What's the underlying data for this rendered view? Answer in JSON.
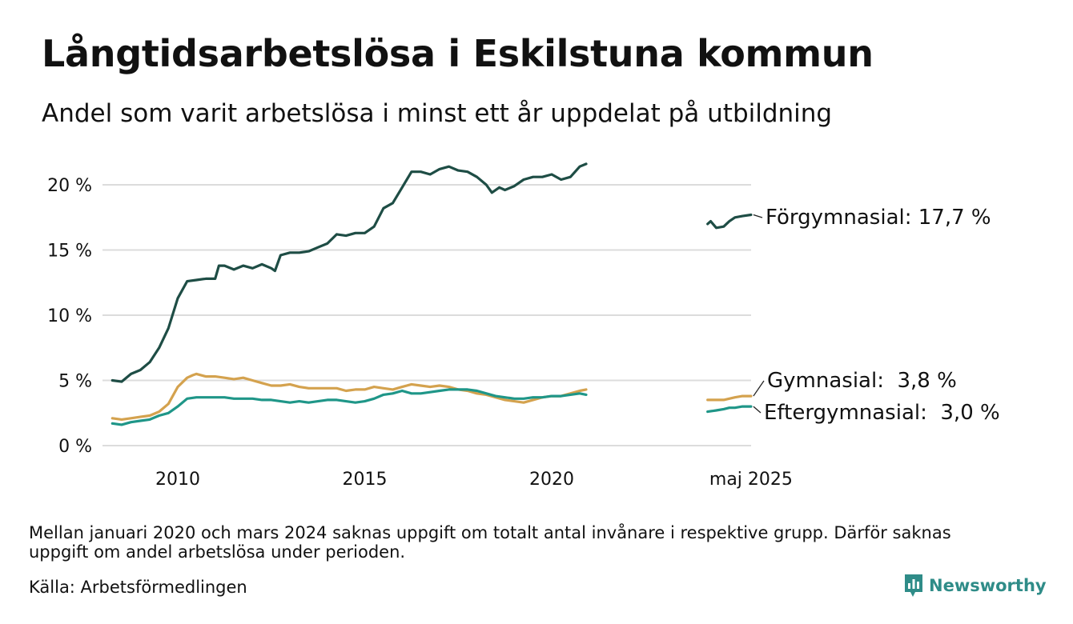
{
  "header": {
    "title": "Långtidsarbetslösa i Eskilstuna kommun",
    "subtitle": "Andel som varit arbetslösa i minst ett år uppdelat på utbildning"
  },
  "footer": {
    "note": "Mellan januari 2020 och mars 2024 saknas uppgift om totalt antal invånare i respektive grupp. Därför saknas uppgift om andel arbetslösa under perioden.",
    "source": "Källa: Arbetsförmedlingen",
    "brand": "Newsworthy",
    "brand_color": "#2f8c88"
  },
  "chart_data": {
    "type": "line",
    "title": "Långtidsarbetslösa i Eskilstuna kommun",
    "subtitle": "Andel som varit arbetslösa i minst ett år uppdelat på utbildning",
    "xlabel": "",
    "ylabel": "",
    "x_ticks": [
      {
        "x": 2010,
        "label": "2010"
      },
      {
        "x": 2015,
        "label": "2015"
      },
      {
        "x": 2020,
        "label": "2020"
      },
      {
        "x": 2025.33,
        "label": "maj 2025"
      }
    ],
    "y_ticks": [
      {
        "y": 0,
        "label": "0 %"
      },
      {
        "y": 5,
        "label": "5 %"
      },
      {
        "y": 10,
        "label": "10 %"
      },
      {
        "y": 15,
        "label": "15 %"
      },
      {
        "y": 20,
        "label": "20 %"
      }
    ],
    "xlim": [
      2008.0,
      2025.6
    ],
    "ylim": [
      0,
      22
    ],
    "grid": true,
    "legend": "direct labels at right end of lines",
    "series": [
      {
        "name": "Förgymnasial",
        "end_label": "Förgymnasial: 17,7 %",
        "color": "#1e4d45",
        "segments": [
          [
            [
              2008.25,
              5.0
            ],
            [
              2008.5,
              4.9
            ],
            [
              2008.75,
              5.5
            ],
            [
              2009.0,
              5.8
            ],
            [
              2009.25,
              6.4
            ],
            [
              2009.5,
              7.5
            ],
            [
              2009.75,
              9.0
            ],
            [
              2010.0,
              11.3
            ],
            [
              2010.25,
              12.6
            ],
            [
              2010.5,
              12.7
            ],
            [
              2010.75,
              12.8
            ],
            [
              2011.0,
              12.8
            ],
            [
              2011.1,
              13.8
            ],
            [
              2011.25,
              13.8
            ],
            [
              2011.5,
              13.5
            ],
            [
              2011.75,
              13.8
            ],
            [
              2012.0,
              13.6
            ],
            [
              2012.25,
              13.9
            ],
            [
              2012.5,
              13.6
            ],
            [
              2012.6,
              13.4
            ],
            [
              2012.75,
              14.6
            ],
            [
              2013.0,
              14.8
            ],
            [
              2013.25,
              14.8
            ],
            [
              2013.5,
              14.9
            ],
            [
              2013.75,
              15.2
            ],
            [
              2014.0,
              15.5
            ],
            [
              2014.25,
              16.2
            ],
            [
              2014.5,
              16.1
            ],
            [
              2014.75,
              16.3
            ],
            [
              2015.0,
              16.3
            ],
            [
              2015.25,
              16.8
            ],
            [
              2015.5,
              18.2
            ],
            [
              2015.75,
              18.6
            ],
            [
              2016.0,
              19.8
            ],
            [
              2016.25,
              21.0
            ],
            [
              2016.5,
              21.0
            ],
            [
              2016.75,
              20.8
            ],
            [
              2017.0,
              21.2
            ],
            [
              2017.25,
              21.4
            ],
            [
              2017.5,
              21.1
            ],
            [
              2017.75,
              21.0
            ],
            [
              2018.0,
              20.6
            ],
            [
              2018.25,
              20.0
            ],
            [
              2018.4,
              19.4
            ],
            [
              2018.6,
              19.8
            ],
            [
              2018.75,
              19.6
            ],
            [
              2019.0,
              19.9
            ],
            [
              2019.25,
              20.4
            ],
            [
              2019.5,
              20.6
            ],
            [
              2019.75,
              20.6
            ],
            [
              2020.0,
              20.8
            ],
            [
              2020.25,
              20.4
            ],
            [
              2020.5,
              20.6
            ],
            [
              2020.75,
              21.4
            ],
            [
              2020.92,
              21.6
            ]
          ],
          [
            [
              2024.17,
              17.0
            ],
            [
              2024.25,
              17.2
            ],
            [
              2024.4,
              16.7
            ],
            [
              2024.6,
              16.8
            ],
            [
              2024.75,
              17.2
            ],
            [
              2024.9,
              17.5
            ],
            [
              2025.1,
              17.6
            ],
            [
              2025.33,
              17.7
            ]
          ]
        ]
      },
      {
        "name": "Gymnasial",
        "end_label": "Gymnasial:  3,8 %",
        "color": "#d4a24e",
        "segments": [
          [
            [
              2008.25,
              2.1
            ],
            [
              2008.5,
              2.0
            ],
            [
              2008.75,
              2.1
            ],
            [
              2009.0,
              2.2
            ],
            [
              2009.25,
              2.3
            ],
            [
              2009.5,
              2.6
            ],
            [
              2009.75,
              3.2
            ],
            [
              2010.0,
              4.5
            ],
            [
              2010.25,
              5.2
            ],
            [
              2010.4,
              5.4
            ],
            [
              2010.5,
              5.5
            ],
            [
              2010.75,
              5.3
            ],
            [
              2011.0,
              5.3
            ],
            [
              2011.25,
              5.2
            ],
            [
              2011.5,
              5.1
            ],
            [
              2011.75,
              5.2
            ],
            [
              2012.0,
              5.0
            ],
            [
              2012.25,
              4.8
            ],
            [
              2012.5,
              4.6
            ],
            [
              2012.75,
              4.6
            ],
            [
              2013.0,
              4.7
            ],
            [
              2013.25,
              4.5
            ],
            [
              2013.5,
              4.4
            ],
            [
              2013.75,
              4.4
            ],
            [
              2014.0,
              4.4
            ],
            [
              2014.25,
              4.4
            ],
            [
              2014.5,
              4.2
            ],
            [
              2014.75,
              4.3
            ],
            [
              2015.0,
              4.3
            ],
            [
              2015.25,
              4.5
            ],
            [
              2015.5,
              4.4
            ],
            [
              2015.75,
              4.3
            ],
            [
              2016.0,
              4.5
            ],
            [
              2016.25,
              4.7
            ],
            [
              2016.5,
              4.6
            ],
            [
              2016.75,
              4.5
            ],
            [
              2017.0,
              4.6
            ],
            [
              2017.25,
              4.5
            ],
            [
              2017.5,
              4.3
            ],
            [
              2017.75,
              4.2
            ],
            [
              2018.0,
              4.0
            ],
            [
              2018.25,
              3.9
            ],
            [
              2018.5,
              3.7
            ],
            [
              2018.75,
              3.5
            ],
            [
              2019.0,
              3.4
            ],
            [
              2019.25,
              3.3
            ],
            [
              2019.5,
              3.5
            ],
            [
              2019.75,
              3.7
            ],
            [
              2020.0,
              3.8
            ],
            [
              2020.25,
              3.8
            ],
            [
              2020.5,
              4.0
            ],
            [
              2020.75,
              4.2
            ],
            [
              2020.92,
              4.3
            ]
          ],
          [
            [
              2024.17,
              3.5
            ],
            [
              2024.4,
              3.5
            ],
            [
              2024.6,
              3.5
            ],
            [
              2024.75,
              3.6
            ],
            [
              2024.9,
              3.7
            ],
            [
              2025.1,
              3.8
            ],
            [
              2025.33,
              3.8
            ]
          ]
        ]
      },
      {
        "name": "Eftergymnasial",
        "end_label": "Eftergymnasial:  3,0 %",
        "color": "#1f9688",
        "segments": [
          [
            [
              2008.25,
              1.7
            ],
            [
              2008.5,
              1.6
            ],
            [
              2008.75,
              1.8
            ],
            [
              2009.0,
              1.9
            ],
            [
              2009.25,
              2.0
            ],
            [
              2009.5,
              2.3
            ],
            [
              2009.75,
              2.5
            ],
            [
              2010.0,
              3.0
            ],
            [
              2010.25,
              3.6
            ],
            [
              2010.5,
              3.7
            ],
            [
              2010.75,
              3.7
            ],
            [
              2011.0,
              3.7
            ],
            [
              2011.25,
              3.7
            ],
            [
              2011.5,
              3.6
            ],
            [
              2011.75,
              3.6
            ],
            [
              2012.0,
              3.6
            ],
            [
              2012.25,
              3.5
            ],
            [
              2012.5,
              3.5
            ],
            [
              2012.75,
              3.4
            ],
            [
              2013.0,
              3.3
            ],
            [
              2013.25,
              3.4
            ],
            [
              2013.5,
              3.3
            ],
            [
              2013.75,
              3.4
            ],
            [
              2014.0,
              3.5
            ],
            [
              2014.25,
              3.5
            ],
            [
              2014.5,
              3.4
            ],
            [
              2014.75,
              3.3
            ],
            [
              2015.0,
              3.4
            ],
            [
              2015.25,
              3.6
            ],
            [
              2015.5,
              3.9
            ],
            [
              2015.75,
              4.0
            ],
            [
              2016.0,
              4.2
            ],
            [
              2016.25,
              4.0
            ],
            [
              2016.5,
              4.0
            ],
            [
              2016.75,
              4.1
            ],
            [
              2017.0,
              4.2
            ],
            [
              2017.25,
              4.3
            ],
            [
              2017.5,
              4.3
            ],
            [
              2017.75,
              4.3
            ],
            [
              2018.0,
              4.2
            ],
            [
              2018.25,
              4.0
            ],
            [
              2018.5,
              3.8
            ],
            [
              2018.75,
              3.7
            ],
            [
              2019.0,
              3.6
            ],
            [
              2019.25,
              3.6
            ],
            [
              2019.5,
              3.7
            ],
            [
              2019.75,
              3.7
            ],
            [
              2020.0,
              3.8
            ],
            [
              2020.25,
              3.8
            ],
            [
              2020.5,
              3.9
            ],
            [
              2020.75,
              4.0
            ],
            [
              2020.92,
              3.9
            ]
          ],
          [
            [
              2024.17,
              2.6
            ],
            [
              2024.4,
              2.7
            ],
            [
              2024.6,
              2.8
            ],
            [
              2024.75,
              2.9
            ],
            [
              2024.9,
              2.9
            ],
            [
              2025.1,
              3.0
            ],
            [
              2025.33,
              3.0
            ]
          ]
        ]
      }
    ]
  }
}
